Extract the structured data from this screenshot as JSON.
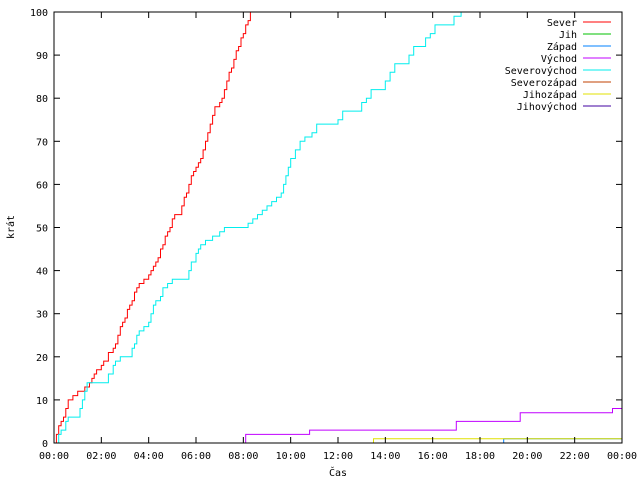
{
  "chart_data": {
    "type": "line",
    "title": "",
    "xlabel": "Čas",
    "ylabel": "krát",
    "xlim": [
      0,
      24
    ],
    "ylim": [
      0,
      100
    ],
    "x_ticks": [
      "00:00",
      "02:00",
      "04:00",
      "06:00",
      "08:00",
      "10:00",
      "12:00",
      "14:00",
      "16:00",
      "18:00",
      "20:00",
      "22:00",
      "00:00"
    ],
    "y_ticks": [
      0,
      10,
      20,
      30,
      40,
      50,
      60,
      70,
      80,
      90,
      100
    ],
    "grid": false,
    "legend_position": "top-right",
    "series": [
      {
        "name": "Sever",
        "color": "#ff0000",
        "points": [
          [
            0,
            0
          ],
          [
            0.1,
            2
          ],
          [
            0.2,
            4
          ],
          [
            0.3,
            5
          ],
          [
            0.4,
            6
          ],
          [
            0.5,
            8
          ],
          [
            0.6,
            10
          ],
          [
            0.8,
            11
          ],
          [
            1.0,
            12
          ],
          [
            1.3,
            13
          ],
          [
            1.5,
            14
          ],
          [
            1.6,
            15
          ],
          [
            1.7,
            16
          ],
          [
            1.8,
            17
          ],
          [
            2.0,
            18
          ],
          [
            2.1,
            19
          ],
          [
            2.3,
            21
          ],
          [
            2.5,
            22
          ],
          [
            2.6,
            23
          ],
          [
            2.7,
            25
          ],
          [
            2.8,
            27
          ],
          [
            2.9,
            28
          ],
          [
            3.0,
            29
          ],
          [
            3.1,
            31
          ],
          [
            3.2,
            32
          ],
          [
            3.3,
            33
          ],
          [
            3.4,
            35
          ],
          [
            3.5,
            36
          ],
          [
            3.6,
            37
          ],
          [
            3.8,
            38
          ],
          [
            4.0,
            39
          ],
          [
            4.1,
            40
          ],
          [
            4.2,
            41
          ],
          [
            4.3,
            42
          ],
          [
            4.4,
            43
          ],
          [
            4.5,
            45
          ],
          [
            4.6,
            46
          ],
          [
            4.7,
            48
          ],
          [
            4.8,
            49
          ],
          [
            4.9,
            50
          ],
          [
            5.0,
            52
          ],
          [
            5.1,
            53
          ],
          [
            5.3,
            53
          ],
          [
            5.4,
            55
          ],
          [
            5.5,
            57
          ],
          [
            5.6,
            58
          ],
          [
            5.7,
            60
          ],
          [
            5.8,
            62
          ],
          [
            5.9,
            63
          ],
          [
            6.0,
            64
          ],
          [
            6.1,
            65
          ],
          [
            6.2,
            66
          ],
          [
            6.3,
            68
          ],
          [
            6.4,
            70
          ],
          [
            6.5,
            72
          ],
          [
            6.6,
            74
          ],
          [
            6.7,
            76
          ],
          [
            6.8,
            78
          ],
          [
            7.0,
            79
          ],
          [
            7.1,
            80
          ],
          [
            7.2,
            82
          ],
          [
            7.3,
            84
          ],
          [
            7.4,
            86
          ],
          [
            7.5,
            87
          ],
          [
            7.6,
            89
          ],
          [
            7.7,
            91
          ],
          [
            7.8,
            92
          ],
          [
            7.9,
            94
          ],
          [
            8.0,
            95
          ],
          [
            8.1,
            97
          ],
          [
            8.2,
            98
          ],
          [
            8.3,
            100
          ]
        ]
      },
      {
        "name": "Jih",
        "color": "#00c000",
        "points": []
      },
      {
        "name": "Západ",
        "color": "#0080ff",
        "points": [
          [
            18.9,
            0
          ],
          [
            19.0,
            1
          ],
          [
            24,
            1
          ]
        ]
      },
      {
        "name": "Východ",
        "color": "#c000ff",
        "points": [
          [
            8.0,
            0
          ],
          [
            8.1,
            2
          ],
          [
            10.8,
            2
          ],
          [
            10.8,
            3
          ],
          [
            16.9,
            3
          ],
          [
            17.0,
            5
          ],
          [
            19.6,
            5
          ],
          [
            19.7,
            7
          ],
          [
            23.5,
            7
          ],
          [
            23.6,
            8
          ],
          [
            24,
            8
          ]
        ]
      },
      {
        "name": "Severovýchod",
        "color": "#00eeee",
        "points": [
          [
            0,
            0
          ],
          [
            0.2,
            2
          ],
          [
            0.3,
            3
          ],
          [
            0.5,
            5
          ],
          [
            0.6,
            6
          ],
          [
            1.0,
            6
          ],
          [
            1.1,
            8
          ],
          [
            1.2,
            10
          ],
          [
            1.3,
            12
          ],
          [
            1.4,
            14
          ],
          [
            2.2,
            14
          ],
          [
            2.3,
            16
          ],
          [
            2.5,
            18
          ],
          [
            2.6,
            19
          ],
          [
            2.8,
            20
          ],
          [
            3.2,
            20
          ],
          [
            3.3,
            22
          ],
          [
            3.4,
            23
          ],
          [
            3.5,
            25
          ],
          [
            3.6,
            26
          ],
          [
            3.8,
            27
          ],
          [
            4.0,
            28
          ],
          [
            4.1,
            30
          ],
          [
            4.2,
            32
          ],
          [
            4.3,
            33
          ],
          [
            4.5,
            34
          ],
          [
            4.6,
            36
          ],
          [
            4.8,
            37
          ],
          [
            5.0,
            38
          ],
          [
            5.6,
            38
          ],
          [
            5.7,
            40
          ],
          [
            5.8,
            42
          ],
          [
            6.0,
            44
          ],
          [
            6.1,
            45
          ],
          [
            6.2,
            46
          ],
          [
            6.4,
            47
          ],
          [
            6.7,
            48
          ],
          [
            7.0,
            49
          ],
          [
            7.2,
            50
          ],
          [
            8.1,
            50
          ],
          [
            8.2,
            51
          ],
          [
            8.4,
            52
          ],
          [
            8.6,
            53
          ],
          [
            8.8,
            54
          ],
          [
            9.0,
            55
          ],
          [
            9.2,
            56
          ],
          [
            9.4,
            57
          ],
          [
            9.6,
            58
          ],
          [
            9.7,
            60
          ],
          [
            9.8,
            62
          ],
          [
            9.9,
            64
          ],
          [
            10.0,
            66
          ],
          [
            10.2,
            68
          ],
          [
            10.4,
            70
          ],
          [
            10.6,
            71
          ],
          [
            10.9,
            72
          ],
          [
            11.1,
            74
          ],
          [
            11.9,
            74
          ],
          [
            12.0,
            75
          ],
          [
            12.2,
            77
          ],
          [
            12.9,
            77
          ],
          [
            13.0,
            79
          ],
          [
            13.2,
            80
          ],
          [
            13.4,
            82
          ],
          [
            13.6,
            82
          ],
          [
            13.9,
            82
          ],
          [
            14.0,
            84
          ],
          [
            14.2,
            86
          ],
          [
            14.4,
            88
          ],
          [
            14.9,
            88
          ],
          [
            15.0,
            90
          ],
          [
            15.2,
            92
          ],
          [
            15.6,
            92
          ],
          [
            15.7,
            94
          ],
          [
            15.9,
            95
          ],
          [
            16.1,
            97
          ],
          [
            16.8,
            97
          ],
          [
            16.9,
            99
          ],
          [
            17.2,
            100
          ]
        ]
      },
      {
        "name": "Severozápad",
        "color": "#c04000",
        "points": []
      },
      {
        "name": "Jihozápad",
        "color": "#e0e000",
        "points": [
          [
            13.5,
            0
          ],
          [
            13.5,
            1
          ],
          [
            24,
            1
          ]
        ]
      },
      {
        "name": "Jihovýchod",
        "color": "#4000a0",
        "points": []
      }
    ]
  }
}
